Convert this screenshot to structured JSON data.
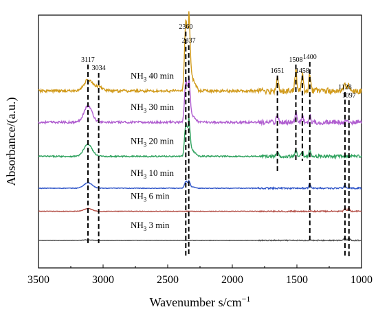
{
  "chart_data": {
    "type": "line",
    "title": "",
    "xlabel": "Wavenumber s/cm",
    "xlabel_superscript": "−1",
    "ylabel": "Absorbance/(a.u.)",
    "xlim": [
      3500,
      1000
    ],
    "x_reversed": true,
    "x_ticks": [
      3500,
      3000,
      2500,
      2000,
      1500,
      1000
    ],
    "y_ticks_shown": false,
    "grid": false,
    "legend": "inline labels",
    "series": [
      {
        "name": "NH3 3 min",
        "label_main": "NH",
        "label_sub": "3",
        "label_rest": " 3 min",
        "color": "#4d4d4d",
        "offset": 0.0,
        "peaks": [
          {
            "x": 3117,
            "h": 0.01
          },
          {
            "x": 1400,
            "h": 0.01
          },
          {
            "x": 1128,
            "h": 0.05
          },
          {
            "x": 1097,
            "h": 0.05
          }
        ],
        "noise": 0.008
      },
      {
        "name": "NH3 6 min",
        "label_main": "NH",
        "label_sub": "3",
        "label_rest": " 6 min",
        "color": "#b5524a",
        "offset": 0.53,
        "peaks": [
          {
            "x": 3117,
            "h": 0.05
          },
          {
            "x": 1128,
            "h": 0.06
          },
          {
            "x": 1097,
            "h": 0.06
          }
        ],
        "noise": 0.01
      },
      {
        "name": "NH3 10 min",
        "label_main": "NH",
        "label_sub": "3",
        "label_rest": " 10 min",
        "color": "#2f55c8",
        "offset": 0.95,
        "peaks": [
          {
            "x": 3117,
            "h": 0.1
          },
          {
            "x": 2360,
            "h": 0.12
          },
          {
            "x": 2337,
            "h": 0.1
          },
          {
            "x": 1400,
            "h": 0.08
          },
          {
            "x": 1128,
            "h": 0.05
          }
        ],
        "noise": 0.012
      },
      {
        "name": "NH3 20 min",
        "label_main": "NH",
        "label_sub": "3",
        "label_rest": " 20 min",
        "color": "#2fa25e",
        "offset": 1.53,
        "peaks": [
          {
            "x": 3117,
            "h": 0.22
          },
          {
            "x": 2360,
            "h": 0.55
          },
          {
            "x": 2337,
            "h": 0.5
          },
          {
            "x": 1651,
            "h": 0.08
          },
          {
            "x": 1508,
            "h": 0.1
          },
          {
            "x": 1458,
            "h": 0.08
          },
          {
            "x": 1400,
            "h": 0.12
          }
        ],
        "noise": 0.025
      },
      {
        "name": "NH3 30 min",
        "label_main": "NH",
        "label_sub": "3",
        "label_rest": " 30 min",
        "color": "#b05ed0",
        "offset": 2.15,
        "peaks": [
          {
            "x": 3117,
            "h": 0.3
          },
          {
            "x": 2360,
            "h": 0.7
          },
          {
            "x": 2337,
            "h": 0.6
          },
          {
            "x": 1651,
            "h": 0.15
          },
          {
            "x": 1508,
            "h": 0.18
          },
          {
            "x": 1458,
            "h": 0.12
          },
          {
            "x": 1400,
            "h": 0.14
          }
        ],
        "noise": 0.04
      },
      {
        "name": "NH3 40 min",
        "label_main": "NH",
        "label_sub": "3",
        "label_rest": " 40 min",
        "color": "#d19a1b",
        "offset": 2.72,
        "peaks": [
          {
            "x": 3117,
            "h": 0.2
          },
          {
            "x": 3034,
            "h": 0.08
          },
          {
            "x": 2360,
            "h": 1.2
          },
          {
            "x": 2337,
            "h": 1.05
          },
          {
            "x": 1651,
            "h": 0.3
          },
          {
            "x": 1508,
            "h": 0.38
          },
          {
            "x": 1458,
            "h": 0.3
          },
          {
            "x": 1400,
            "h": 0.32
          },
          {
            "x": 1128,
            "h": 0.12
          },
          {
            "x": 1097,
            "h": 0.12
          }
        ],
        "noise": 0.05
      }
    ],
    "peak_markers": [
      {
        "label": "3117",
        "x": 3117,
        "y_top": 3.25,
        "y_bottom": -0.05
      },
      {
        "label": "3034",
        "x": 3034,
        "y_top": 3.1,
        "y_bottom": -0.05
      },
      {
        "label": "2360",
        "x": 2360,
        "y_top": 3.85,
        "y_bottom": -0.3
      },
      {
        "label": "2337",
        "x": 2337,
        "y_top": 3.6,
        "y_bottom": -0.3
      },
      {
        "label": "1651",
        "x": 1651,
        "y_top": 3.05,
        "y_bottom": 1.25
      },
      {
        "label": "1508",
        "x": 1508,
        "y_top": 3.25,
        "y_bottom": 1.45
      },
      {
        "label": "1458",
        "x": 1458,
        "y_top": 3.05,
        "y_bottom": 1.45
      },
      {
        "label": "1400",
        "x": 1400,
        "y_top": 3.3,
        "y_bottom": -0.05
      },
      {
        "label": "1128",
        "x": 1128,
        "y_top": 2.75,
        "y_bottom": -0.3
      },
      {
        "label": "1097",
        "x": 1097,
        "y_top": 2.6,
        "y_bottom": -0.3
      }
    ]
  }
}
